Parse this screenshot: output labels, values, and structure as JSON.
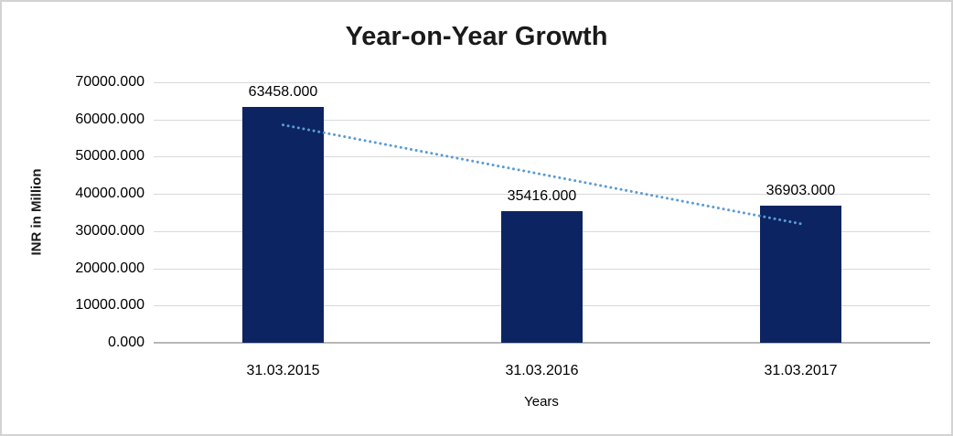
{
  "window": {
    "background_color": "#ffffff",
    "frame_border_color": "#d3d3d3"
  },
  "chart_data": {
    "type": "bar",
    "title": "Year-on-Year Growth",
    "xlabel": "Years",
    "ylabel": "INR in Million",
    "categories": [
      "31.03.2015",
      "31.03.2016",
      "31.03.2017"
    ],
    "values": [
      63458,
      35416,
      36903
    ],
    "data_labels": [
      "63458.000",
      "35416.000",
      "36903.000"
    ],
    "ylim": [
      0,
      70000
    ],
    "ytick_step": 10000,
    "ytick_labels": [
      "0.000",
      "10000.000",
      "20000.000",
      "30000.000",
      "40000.000",
      "50000.000",
      "60000.000",
      "70000.000"
    ],
    "grid": true,
    "legend_position": "none",
    "bar_color": "#0c2461",
    "gridline_color": "#d9d9d9",
    "axis_line_color": "#b7b7b7",
    "trendline": {
      "type": "linear",
      "style": "dotted",
      "color": "#5b9bd5"
    }
  }
}
